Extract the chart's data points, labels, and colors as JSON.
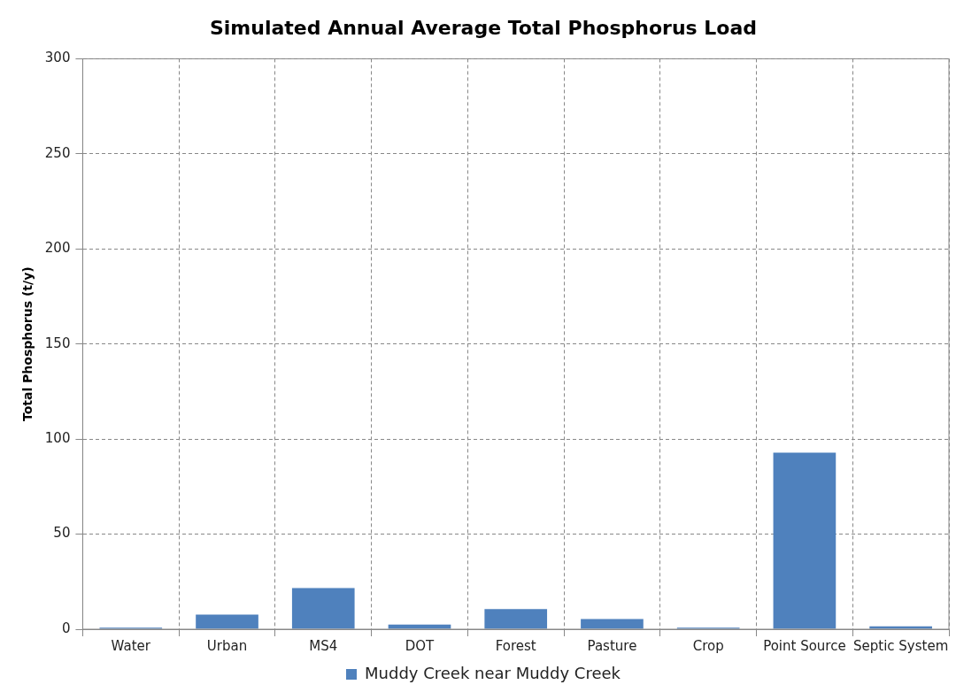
{
  "chart_data": {
    "type": "bar",
    "title": "Simulated Annual Average Total Phosphorus Load",
    "ylabel": "Total Phosphorus (t/y)",
    "categories": [
      "Water",
      "Urban",
      "MS4",
      "DOT",
      "Forest",
      "Pasture",
      "Crop",
      "Point Source",
      "Septic System"
    ],
    "series": [
      {
        "name": "Muddy Creek near Muddy Creek",
        "color": "#4f81bd",
        "values": [
          0.8,
          7.7,
          21.6,
          2.4,
          10.6,
          5.3,
          0.8,
          92.8,
          1.5
        ]
      }
    ],
    "ylim": [
      0,
      300
    ],
    "yticks": [
      0,
      50,
      100,
      150,
      200,
      250,
      300
    ],
    "grid": true,
    "legend": "bottom"
  }
}
